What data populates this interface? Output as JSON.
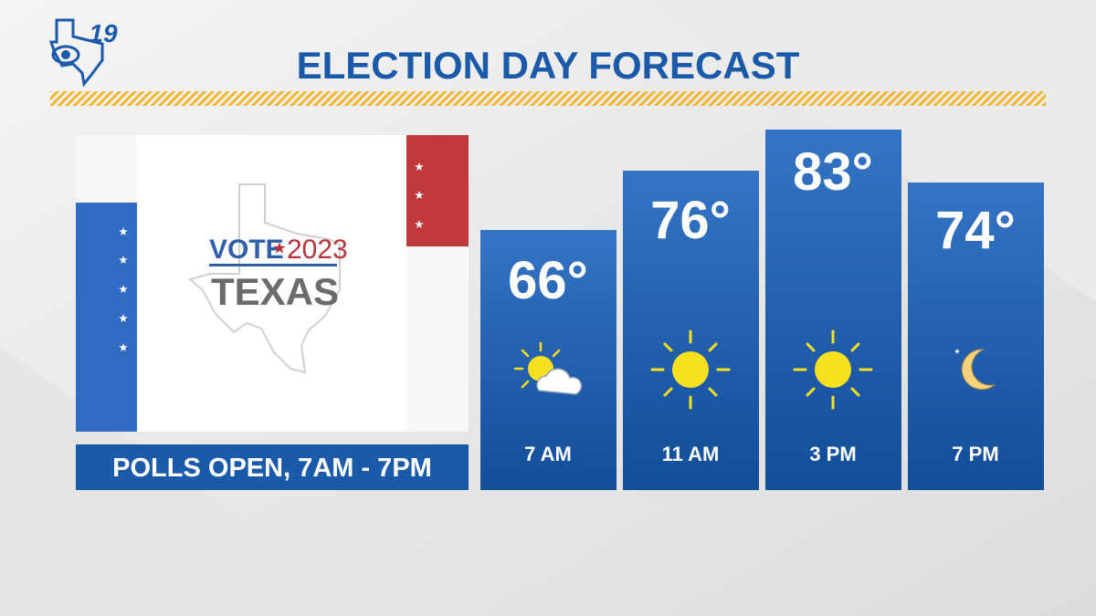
{
  "logo": {
    "text": "19"
  },
  "header": {
    "title": "ELECTION DAY FORECAST"
  },
  "panel": {
    "vote": "VOTE",
    "year": "2023",
    "state": "TEXAS",
    "banner": "POLLS OPEN, 7AM - 7PM"
  },
  "forecast": [
    {
      "time": "7 AM",
      "temp": "66°"
    },
    {
      "time": "11 AM",
      "temp": "76°"
    },
    {
      "time": "3 PM",
      "temp": "83°"
    },
    {
      "time": "7 PM",
      "temp": "74°"
    }
  ]
}
